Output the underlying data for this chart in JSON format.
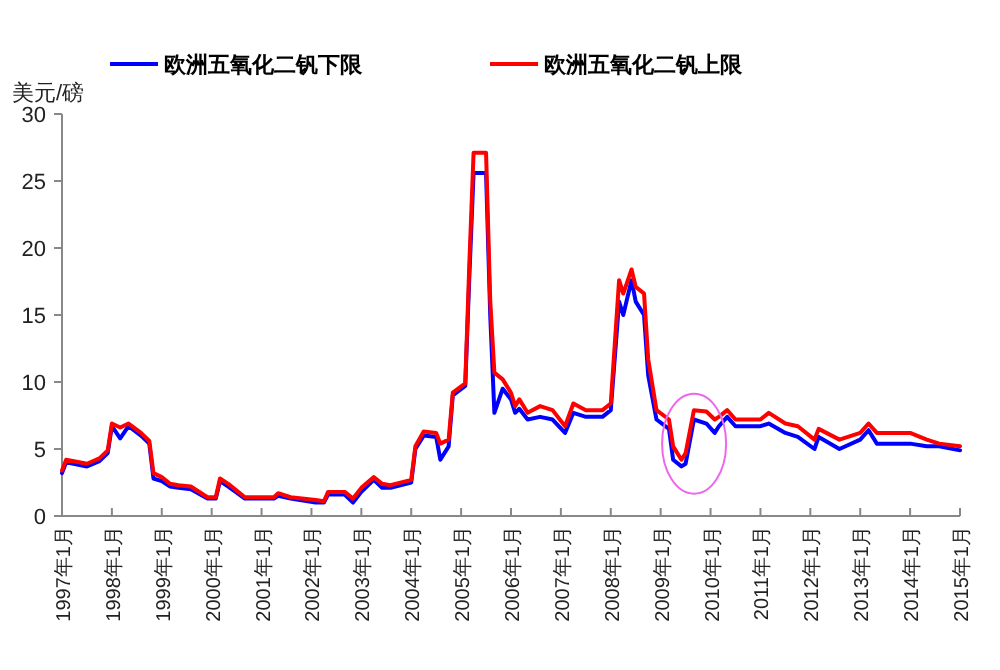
{
  "chart_data": {
    "type": "line",
    "ylabel": "美元/磅",
    "legend": "top",
    "grid": false,
    "x": [
      "1997-01",
      "1997-02",
      "1997-07",
      "1997-10",
      "1997-12",
      "1998-01",
      "1998-03",
      "1998-05",
      "1998-08",
      "1998-10",
      "1998-11",
      "1999-01",
      "1999-03",
      "1999-05",
      "1999-08",
      "1999-12",
      "2000-02",
      "2000-03",
      "2000-05",
      "2000-09",
      "2001-04",
      "2001-05",
      "2001-08",
      "2002-02",
      "2002-04",
      "2002-05",
      "2002-09",
      "2002-11",
      "2003-01",
      "2003-04",
      "2003-06",
      "2003-08",
      "2004-01",
      "2004-02",
      "2004-04",
      "2004-07",
      "2004-08",
      "2004-10",
      "2004-11",
      "2005-02",
      "2005-03",
      "2005-04",
      "2005-07",
      "2005-08",
      "2005-09",
      "2005-11",
      "2006-01",
      "2006-02",
      "2006-03",
      "2006-05",
      "2006-08",
      "2006-11",
      "2007-02",
      "2007-04",
      "2007-07",
      "2007-11",
      "2008-01",
      "2008-03",
      "2008-04",
      "2008-06",
      "2008-07",
      "2008-09",
      "2008-10",
      "2008-12",
      "2009-03",
      "2009-04",
      "2009-06",
      "2009-07",
      "2009-09",
      "2009-12",
      "2010-02",
      "2010-03",
      "2010-05",
      "2010-07",
      "2011-01",
      "2011-03",
      "2011-07",
      "2011-10",
      "2012-02",
      "2012-03",
      "2012-08",
      "2013-01",
      "2013-03",
      "2013-05",
      "2014-01",
      "2014-05",
      "2014-08",
      "2015-01"
    ],
    "series": [
      {
        "name": "欧洲五氧化二钒下限",
        "color": "#0000ff",
        "values": [
          3.2,
          4.0,
          3.7,
          4.1,
          4.7,
          6.7,
          5.8,
          6.7,
          6.0,
          5.4,
          2.8,
          2.6,
          2.2,
          2.1,
          2.0,
          1.3,
          1.3,
          2.6,
          2.2,
          1.3,
          1.3,
          1.5,
          1.3,
          1.0,
          1.0,
          1.6,
          1.6,
          1.0,
          1.8,
          2.7,
          2.1,
          2.1,
          2.5,
          5.0,
          6.0,
          5.9,
          4.2,
          5.2,
          9.0,
          9.7,
          18,
          25.6,
          25.6,
          15,
          7.7,
          9.5,
          8.7,
          7.7,
          8.0,
          7.2,
          7.4,
          7.2,
          6.2,
          7.7,
          7.4,
          7.4,
          7.9,
          16.0,
          15.0,
          17.6,
          16.0,
          15.0,
          10.5,
          7.2,
          6.5,
          4.2,
          3.7,
          3.9,
          7.2,
          6.9,
          6.2,
          6.7,
          7.4,
          6.7,
          6.7,
          6.9,
          6.2,
          5.9,
          5.0,
          5.9,
          5.0,
          5.7,
          6.4,
          5.4,
          5.4,
          5.2,
          5.2,
          4.9
        ]
      },
      {
        "name": "欧洲五氧化二钒上限",
        "color": "#ff0000",
        "values": [
          3.4,
          4.2,
          3.9,
          4.3,
          4.9,
          6.9,
          6.6,
          6.9,
          6.2,
          5.6,
          3.2,
          2.9,
          2.4,
          2.3,
          2.2,
          1.4,
          1.4,
          2.8,
          2.4,
          1.4,
          1.4,
          1.7,
          1.4,
          1.2,
          1.1,
          1.8,
          1.8,
          1.3,
          2.1,
          2.9,
          2.4,
          2.3,
          2.7,
          5.2,
          6.3,
          6.2,
          5.4,
          5.7,
          9.2,
          9.9,
          19,
          27.1,
          27.1,
          16.1,
          10.7,
          10.2,
          9.2,
          8.2,
          8.7,
          7.7,
          8.2,
          7.9,
          6.7,
          8.4,
          7.9,
          7.9,
          8.4,
          17.6,
          16.6,
          18.4,
          17.1,
          16.6,
          11.7,
          7.9,
          7.2,
          5.2,
          4.2,
          4.7,
          7.9,
          7.8,
          7.2,
          7.4,
          7.9,
          7.2,
          7.2,
          7.7,
          6.9,
          6.7,
          5.7,
          6.5,
          5.7,
          6.2,
          6.9,
          6.2,
          6.2,
          5.7,
          5.4,
          5.2
        ]
      }
    ],
    "xlim": [
      "1997-01",
      "2015-01"
    ],
    "xticks": [
      {
        "value": "1997-01",
        "label": "1997年1月"
      },
      {
        "value": "1998-01",
        "label": "1998年1月"
      },
      {
        "value": "1999-01",
        "label": "1999年1月"
      },
      {
        "value": "2000-01",
        "label": "2000年1月"
      },
      {
        "value": "2001-01",
        "label": "2001年1月"
      },
      {
        "value": "2002-01",
        "label": "2002年1月"
      },
      {
        "value": "2003-01",
        "label": "2003年1月"
      },
      {
        "value": "2004-01",
        "label": "2004年1月"
      },
      {
        "value": "2005-01",
        "label": "2005年1月"
      },
      {
        "value": "2006-01",
        "label": "2006年1月"
      },
      {
        "value": "2007-01",
        "label": "2007年1月"
      },
      {
        "value": "2008-01",
        "label": "2008年1月"
      },
      {
        "value": "2009-01",
        "label": "2009年1月"
      },
      {
        "value": "2010-01",
        "label": "2010年1月"
      },
      {
        "value": "2011-01",
        "label": "2011年1月"
      },
      {
        "value": "2012-01",
        "label": "2012年1月"
      },
      {
        "value": "2013-01",
        "label": "2013年1月"
      },
      {
        "value": "2014-01",
        "label": "2014年1月"
      },
      {
        "value": "2015-01",
        "label": "2015年1月"
      }
    ],
    "ylim": [
      0,
      30
    ],
    "yticks": [
      0,
      5,
      10,
      15,
      20,
      25,
      30
    ]
  }
}
